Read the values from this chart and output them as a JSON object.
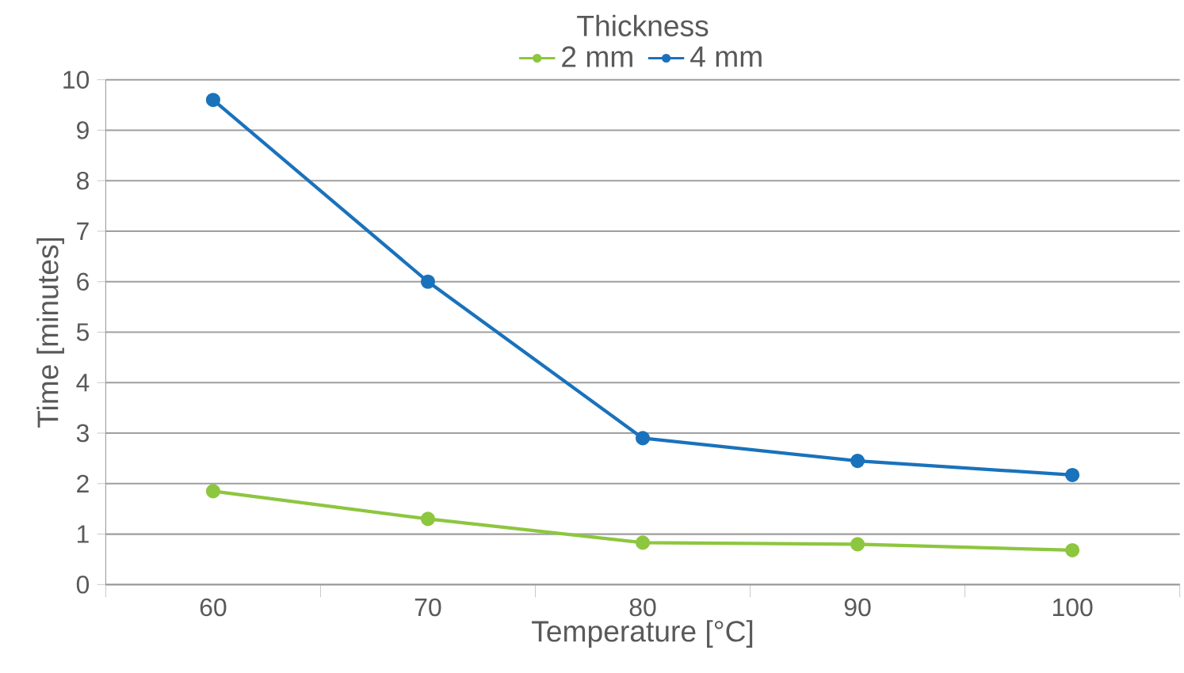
{
  "chart_data": {
    "type": "line",
    "legend_title": "Thickness",
    "xlabel": "Temperature [°C]",
    "ylabel": "Time [minutes]",
    "categories": [
      "60",
      "70",
      "80",
      "90",
      "100"
    ],
    "series": [
      {
        "name": "2 mm",
        "color": "#8dc63f",
        "values": [
          1.85,
          1.3,
          0.83,
          0.8,
          0.68
        ]
      },
      {
        "name": "4 mm",
        "color": "#1a72bb",
        "values": [
          9.6,
          6.0,
          2.9,
          2.45,
          2.17
        ]
      }
    ],
    "ylim": [
      0,
      10
    ],
    "yticks": [
      0,
      1,
      2,
      3,
      4,
      5,
      6,
      7,
      8,
      9,
      10
    ],
    "grid": "y",
    "legend": "top",
    "marker": "circle",
    "line_style": "solid"
  }
}
